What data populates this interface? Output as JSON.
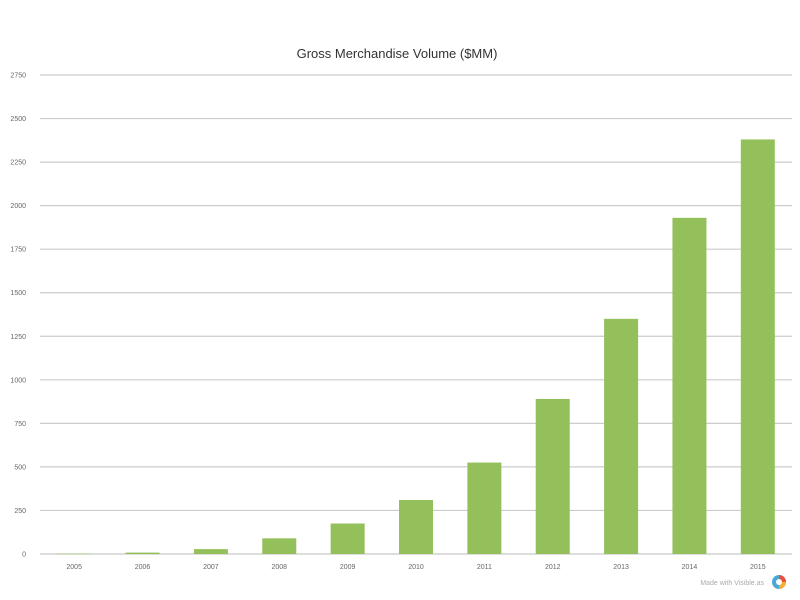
{
  "chart_data": {
    "type": "bar",
    "title": "Gross Merchandise Volume ($MM)",
    "categories": [
      "2005",
      "2006",
      "2007",
      "2008",
      "2009",
      "2010",
      "2011",
      "2012",
      "2013",
      "2014",
      "2015"
    ],
    "values": [
      2,
      8,
      28,
      90,
      175,
      310,
      525,
      890,
      1350,
      1930,
      2380
    ],
    "ylim": [
      0,
      2750
    ],
    "y_ticks": [
      "0",
      "250",
      "500",
      "750",
      "1000",
      "1250",
      "1500",
      "1750",
      "2000",
      "2250",
      "2500",
      "2750"
    ],
    "xlabel": "",
    "ylabel": "",
    "grid": true,
    "bar_color": "#93c05a",
    "gridline_color": "#cccccc"
  },
  "footer": {
    "watermark": "Made with Visible.as"
  },
  "icons": {
    "logo": "visible-logo-icon"
  }
}
